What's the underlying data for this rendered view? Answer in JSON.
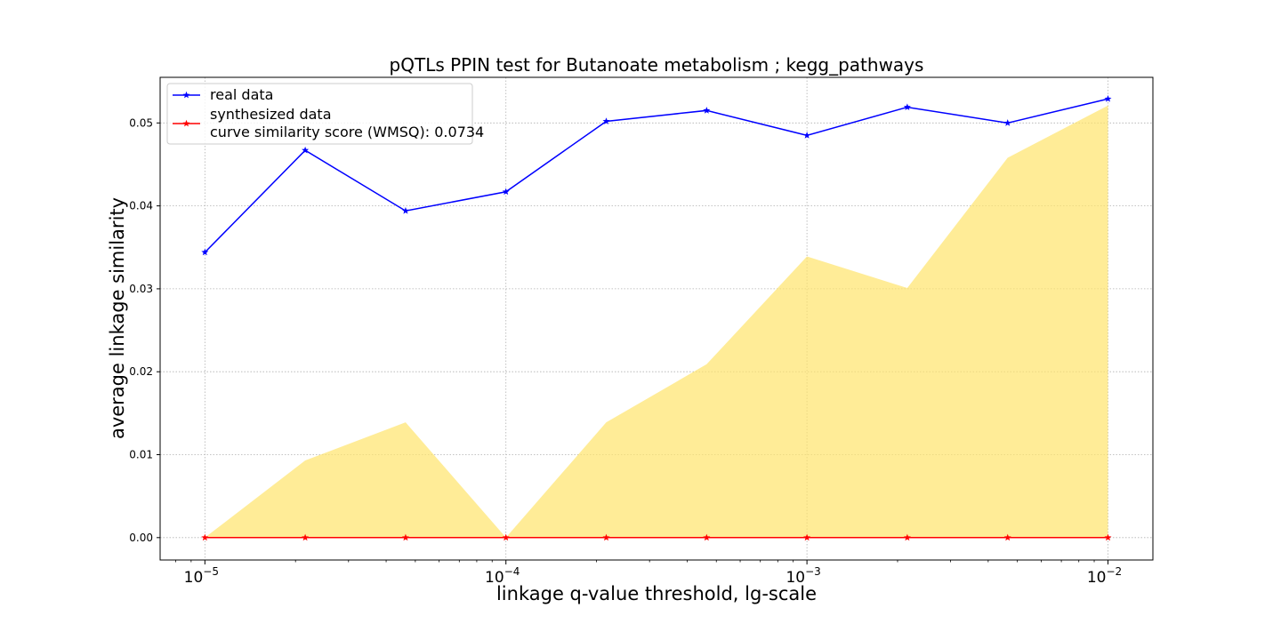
{
  "chart_data": {
    "type": "line",
    "title": "pQTLs PPIN test for Butanoate metabolism ; kegg_pathways",
    "xlabel": "linkage q-value threshold, lg-scale",
    "ylabel": "average linkage similarity",
    "xscale": "log",
    "xlim": [
      7.1e-06,
      0.0141
    ],
    "ylim": [
      -0.0027,
      0.0555
    ],
    "grid": true,
    "legend_position": "top-left",
    "x": [
      1e-05,
      2.154e-05,
      4.642e-05,
      0.0001,
      0.0002154,
      0.0004642,
      0.001,
      0.002154,
      0.004642,
      0.01
    ],
    "xticks": [
      {
        "value": 1e-05,
        "base": "10",
        "exp": "−5"
      },
      {
        "value": 0.0001,
        "base": "10",
        "exp": "−4"
      },
      {
        "value": 0.001,
        "base": "10",
        "exp": "−3"
      },
      {
        "value": 0.01,
        "base": "10",
        "exp": "−2"
      }
    ],
    "yticks": [
      {
        "value": 0.0,
        "label": "0.00"
      },
      {
        "value": 0.01,
        "label": "0.01"
      },
      {
        "value": 0.02,
        "label": "0.02"
      },
      {
        "value": 0.03,
        "label": "0.03"
      },
      {
        "value": 0.04,
        "label": "0.04"
      },
      {
        "value": 0.05,
        "label": "0.05"
      }
    ],
    "series": [
      {
        "name": "real data",
        "color": "#0000ff",
        "marker": "star",
        "values": [
          0.0344,
          0.0467,
          0.0394,
          0.0417,
          0.0502,
          0.0515,
          0.0485,
          0.0519,
          0.05,
          0.0529
        ]
      },
      {
        "name": "synthesized data",
        "color": "#ff0000",
        "marker": "star",
        "values": [
          0,
          0,
          0,
          0,
          0,
          0,
          0,
          0,
          0,
          0
        ]
      }
    ],
    "band": {
      "color": "#ffe46b",
      "opacity": 0.7,
      "lower": [
        0,
        0,
        0,
        0,
        0,
        0,
        0,
        0,
        0,
        0
      ],
      "upper": [
        0.0,
        0.0093,
        0.0139,
        0.0,
        0.0139,
        0.0209,
        0.0339,
        0.0301,
        0.0458,
        0.0521
      ]
    },
    "legend_extra_line": "curve similarity score (WMSQ): 0.0734"
  }
}
